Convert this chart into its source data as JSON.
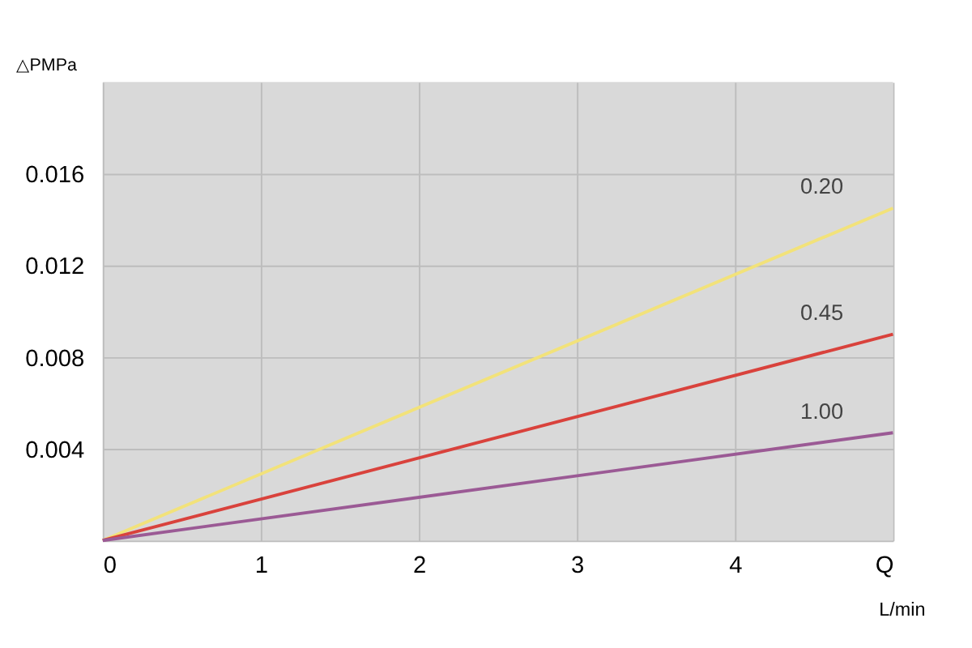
{
  "chart_data": {
    "type": "line",
    "xlabel": "L/min",
    "ylabel": "△PMPa",
    "x": [
      0,
      5
    ],
    "series": [
      {
        "name": "0.20",
        "color": "#f2e27a",
        "values": [
          0,
          0.0145
        ]
      },
      {
        "name": "0.45",
        "color": "#d9423c",
        "values": [
          0,
          0.009
        ]
      },
      {
        "name": "1.00",
        "color": "#9b5a95",
        "values": [
          0,
          0.0047
        ]
      }
    ],
    "xlim": [
      0,
      5
    ],
    "xticks": [
      0,
      1,
      2,
      3,
      4,
      {
        "value": 5,
        "label": "Q"
      }
    ],
    "ylim": [
      0,
      0.02
    ],
    "yticks": [
      {
        "value": 0,
        "label": null
      },
      0.004,
      0.008,
      0.012,
      0.016
    ],
    "grid": true,
    "marker": "none",
    "line_style": "solid"
  }
}
